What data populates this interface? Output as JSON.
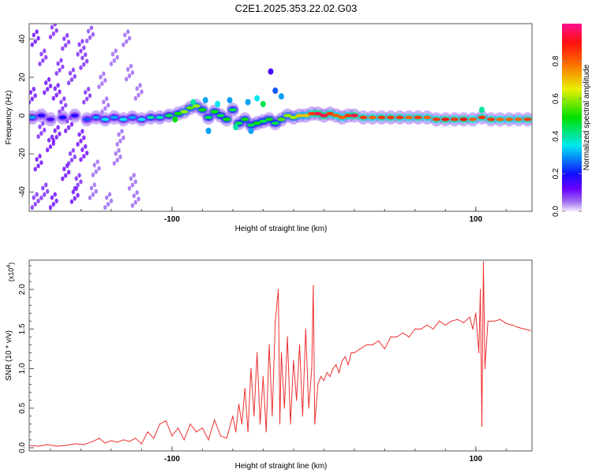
{
  "chart_data": [
    {
      "type": "heatmap",
      "title": "C2E1.2025.353.22.02.G03",
      "xlabel": "Height of straight line (km)",
      "ylabel": "Frequency (Hz)",
      "xlim": [
        -194,
        137
      ],
      "ylim": [
        -50,
        48
      ],
      "xticks": [
        -100,
        100
      ],
      "xtick_labels": [
        "-100",
        "100"
      ],
      "yticks": [
        -40,
        -20,
        0,
        20,
        40
      ],
      "ytick_labels": [
        "-40",
        "-20",
        "0",
        "20",
        "40"
      ],
      "colorbar": {
        "label": "Normalized spectral amplitude",
        "range": [
          0,
          1
        ],
        "ticks": [
          "0.0",
          "0.2",
          "0.4",
          "0.6",
          "0.8"
        ],
        "tick_values": [
          0,
          0.2,
          0.4,
          0.6,
          0.8
        ],
        "stops": [
          [
            0,
            "#f4ecfc"
          ],
          [
            0.05,
            "#a070f0"
          ],
          [
            0.12,
            "#6a00ff"
          ],
          [
            0.2,
            "#1010ff"
          ],
          [
            0.35,
            "#00e8f0"
          ],
          [
            0.5,
            "#00e000"
          ],
          [
            0.65,
            "#e8f000"
          ],
          [
            0.8,
            "#ff6000"
          ],
          [
            0.9,
            "#ff1010"
          ],
          [
            1,
            "#ff1090"
          ]
        ]
      },
      "ridge": [
        [
          -192,
          -1,
          0.3
        ],
        [
          -186,
          0,
          0.18
        ],
        [
          -180,
          -2,
          0.15
        ],
        [
          -172,
          -1,
          0.2
        ],
        [
          -164,
          0,
          0.18
        ],
        [
          -156,
          -2,
          0.25
        ],
        [
          -150,
          -1,
          0.3
        ],
        [
          -144,
          -2,
          0.35
        ],
        [
          -138,
          -1,
          0.3
        ],
        [
          -132,
          -2,
          0.35
        ],
        [
          -126,
          -1,
          0.3
        ],
        [
          -120,
          -2,
          0.35
        ],
        [
          -114,
          -1,
          0.4
        ],
        [
          -108,
          -1,
          0.38
        ],
        [
          -102,
          0,
          0.45
        ],
        [
          -96,
          1,
          0.5
        ],
        [
          -92,
          2,
          0.6
        ],
        [
          -88,
          4,
          0.55
        ],
        [
          -84,
          5,
          0.6
        ],
        [
          -80,
          3,
          0.5
        ],
        [
          -76,
          -1,
          0.45
        ],
        [
          -72,
          2,
          0.5
        ],
        [
          -68,
          0,
          0.45
        ],
        [
          -64,
          -2,
          0.5
        ],
        [
          -60,
          3,
          0.45
        ],
        [
          -56,
          -4,
          0.45
        ],
        [
          -52,
          -2,
          0.5
        ],
        [
          -48,
          -5,
          0.45
        ],
        [
          -44,
          -4,
          0.5
        ],
        [
          -40,
          -3,
          0.45
        ],
        [
          -36,
          -2,
          0.5
        ],
        [
          -32,
          -4,
          0.45
        ],
        [
          -28,
          -2,
          0.55
        ],
        [
          -24,
          0,
          0.6
        ],
        [
          -20,
          -1,
          0.6
        ],
        [
          -16,
          0,
          0.7
        ],
        [
          -12,
          0,
          0.7
        ],
        [
          -8,
          1,
          0.85
        ],
        [
          -4,
          1,
          0.95
        ],
        [
          0,
          0,
          0.95
        ],
        [
          4,
          1,
          0.85
        ],
        [
          8,
          0,
          0.8
        ],
        [
          12,
          -1,
          0.8
        ],
        [
          16,
          0,
          0.85
        ],
        [
          20,
          0,
          0.95
        ],
        [
          26,
          -1,
          0.85
        ],
        [
          32,
          -1,
          0.8
        ],
        [
          38,
          -1,
          0.85
        ],
        [
          44,
          -1,
          0.85
        ],
        [
          50,
          -1,
          0.85
        ],
        [
          56,
          -1,
          0.8
        ],
        [
          62,
          -1,
          0.85
        ],
        [
          68,
          -1,
          0.8
        ],
        [
          74,
          -2,
          0.85
        ],
        [
          80,
          -2,
          0.9
        ],
        [
          86,
          -2,
          0.85
        ],
        [
          92,
          -2,
          0.9
        ],
        [
          98,
          -2,
          0.8
        ],
        [
          104,
          -1,
          0.85
        ],
        [
          110,
          -2,
          0.85
        ],
        [
          116,
          -2,
          0.8
        ],
        [
          122,
          -2,
          0.8
        ],
        [
          128,
          -2,
          0.8
        ],
        [
          134,
          -2,
          0.85
        ]
      ],
      "blobs": [
        [
          -86,
          7,
          0.4
        ],
        [
          -78,
          8,
          0.3
        ],
        [
          -70,
          6,
          0.35
        ],
        [
          -62,
          8,
          0.3
        ],
        [
          -50,
          7,
          0.3
        ],
        [
          -44,
          9,
          0.35
        ],
        [
          -40,
          6,
          0.45
        ],
        [
          -35,
          23,
          0.15
        ],
        [
          -32,
          13,
          0.25
        ],
        [
          -28,
          10,
          0.3
        ],
        [
          -98,
          -2,
          0.5
        ],
        [
          -58,
          -6,
          0.4
        ],
        [
          -48,
          -8,
          0.3
        ],
        [
          104,
          3,
          0.4
        ],
        [
          -76,
          -8,
          0.3
        ]
      ],
      "noise": [
        [
          -190,
          40,
          0.12
        ],
        [
          -185,
          30,
          0.1
        ],
        [
          -182,
          15,
          0.12
        ],
        [
          -178,
          44,
          0.1
        ],
        [
          -176,
          -10,
          0.12
        ],
        [
          -172,
          5,
          0.1
        ],
        [
          -170,
          -30,
          0.12
        ],
        [
          -166,
          20,
          0.1
        ],
        [
          -164,
          -42,
          0.12
        ],
        [
          -160,
          35,
          0.1
        ],
        [
          -158,
          -20,
          0.12
        ],
        [
          -156,
          10,
          0.1
        ],
        [
          -188,
          -25,
          0.12
        ],
        [
          -184,
          -40,
          0.1
        ],
        [
          -180,
          -15,
          0.12
        ],
        [
          -174,
          25,
          0.1
        ],
        [
          -168,
          -5,
          0.12
        ],
        [
          -162,
          -35,
          0.1
        ],
        [
          -154,
          42,
          0.08
        ],
        [
          -150,
          -28,
          0.06
        ],
        [
          -146,
          18,
          0.06
        ],
        [
          -142,
          -45,
          0.06
        ],
        [
          -138,
          30,
          0.06
        ],
        [
          -134,
          -12,
          0.06
        ],
        [
          -130,
          40,
          0.06
        ],
        [
          -126,
          -35,
          0.06
        ],
        [
          -122,
          12,
          0.06
        ],
        [
          -192,
          10,
          0.12
        ],
        [
          -186,
          -8,
          0.1
        ],
        [
          -178,
          -45,
          0.12
        ],
        [
          -170,
          38,
          0.1
        ],
        [
          -160,
          -12,
          0.12
        ],
        [
          -152,
          -40,
          0.06
        ],
        [
          -144,
          5,
          0.06
        ],
        [
          -136,
          -22,
          0.06
        ],
        [
          -128,
          22,
          0.06
        ],
        [
          -124,
          -44,
          0.06
        ],
        [
          -190,
          -45,
          0.1
        ],
        [
          -166,
          -22,
          0.1
        ],
        [
          -176,
          12,
          0.12
        ],
        [
          -158,
          28,
          0.1
        ]
      ]
    },
    {
      "type": "line",
      "xlabel": "Height of straight line (km)",
      "ylabel": "SNR (10 * v/v)",
      "y_multiplier": "(x10^4)",
      "xlim": [
        -194,
        137
      ],
      "ylim": [
        -0.04,
        2.37
      ],
      "xticks": [
        -100,
        100
      ],
      "xtick_labels": [
        "-100",
        "100"
      ],
      "yticks": [
        0,
        0.5,
        1,
        1.5,
        2
      ],
      "ytick_labels": [
        "0.0",
        "0.5",
        "1.0",
        "1.5",
        "2.0"
      ],
      "color": "#ee3030",
      "series": [
        {
          "name": "SNR",
          "points": [
            [
              -194,
              0.03
            ],
            [
              -188,
              0.02
            ],
            [
              -182,
              0.04
            ],
            [
              -176,
              0.02
            ],
            [
              -170,
              0.03
            ],
            [
              -164,
              0.05
            ],
            [
              -158,
              0.04
            ],
            [
              -152,
              0.08
            ],
            [
              -148,
              0.12
            ],
            [
              -144,
              0.06
            ],
            [
              -140,
              0.09
            ],
            [
              -136,
              0.07
            ],
            [
              -132,
              0.1
            ],
            [
              -128,
              0.08
            ],
            [
              -124,
              0.12
            ],
            [
              -120,
              0.05
            ],
            [
              -116,
              0.2
            ],
            [
              -112,
              0.12
            ],
            [
              -108,
              0.3
            ],
            [
              -104,
              0.34
            ],
            [
              -100,
              0.15
            ],
            [
              -96,
              0.25
            ],
            [
              -92,
              0.1
            ],
            [
              -88,
              0.3
            ],
            [
              -84,
              0.2
            ],
            [
              -80,
              0.25
            ],
            [
              -76,
              0.1
            ],
            [
              -72,
              0.35
            ],
            [
              -68,
              0.15
            ],
            [
              -64,
              0.12
            ],
            [
              -60,
              0.4
            ],
            [
              -58,
              0.2
            ],
            [
              -56,
              0.55
            ],
            [
              -54,
              0.3
            ],
            [
              -52,
              0.75
            ],
            [
              -50,
              0.2
            ],
            [
              -48,
              1.0
            ],
            [
              -46,
              0.4
            ],
            [
              -44,
              1.2
            ],
            [
              -42,
              0.3
            ],
            [
              -40,
              0.9
            ],
            [
              -38,
              0.2
            ],
            [
              -36,
              1.3
            ],
            [
              -34,
              0.4
            ],
            [
              -32,
              1.6
            ],
            [
              -30,
              2.0
            ],
            [
              -29,
              0.3
            ],
            [
              -28,
              1.2
            ],
            [
              -26,
              0.5
            ],
            [
              -24,
              1.4
            ],
            [
              -22,
              0.3
            ],
            [
              -20,
              1.1
            ],
            [
              -18,
              0.6
            ],
            [
              -16,
              1.3
            ],
            [
              -14,
              0.4
            ],
            [
              -12,
              1.5
            ],
            [
              -10,
              0.5
            ],
            [
              -8,
              1.0
            ],
            [
              -7,
              2.05
            ],
            [
              -6,
              0.3
            ],
            [
              -4,
              0.8
            ],
            [
              -2,
              0.9
            ],
            [
              0,
              0.85
            ],
            [
              2,
              0.95
            ],
            [
              4,
              0.9
            ],
            [
              6,
              1.0
            ],
            [
              8,
              1.05
            ],
            [
              10,
              0.95
            ],
            [
              12,
              1.1
            ],
            [
              14,
              1.15
            ],
            [
              16,
              1.05
            ],
            [
              18,
              1.2
            ],
            [
              20,
              1.2
            ],
            [
              24,
              1.25
            ],
            [
              28,
              1.3
            ],
            [
              32,
              1.3
            ],
            [
              36,
              1.35
            ],
            [
              40,
              1.25
            ],
            [
              44,
              1.4
            ],
            [
              48,
              1.4
            ],
            [
              52,
              1.45
            ],
            [
              56,
              1.4
            ],
            [
              60,
              1.5
            ],
            [
              64,
              1.5
            ],
            [
              68,
              1.55
            ],
            [
              72,
              1.5
            ],
            [
              76,
              1.6
            ],
            [
              80,
              1.55
            ],
            [
              84,
              1.6
            ],
            [
              88,
              1.62
            ],
            [
              92,
              1.58
            ],
            [
              96,
              1.65
            ],
            [
              98,
              1.5
            ],
            [
              100,
              1.7
            ],
            [
              102,
              1.2
            ],
            [
              103,
              2.0
            ],
            [
              104,
              0.27
            ],
            [
              105,
              2.35
            ],
            [
              106,
              1.0
            ],
            [
              108,
              1.6
            ],
            [
              112,
              1.6
            ],
            [
              116,
              1.62
            ],
            [
              120,
              1.57
            ],
            [
              124,
              1.55
            ],
            [
              128,
              1.52
            ],
            [
              132,
              1.5
            ],
            [
              136,
              1.48
            ]
          ]
        }
      ]
    }
  ]
}
